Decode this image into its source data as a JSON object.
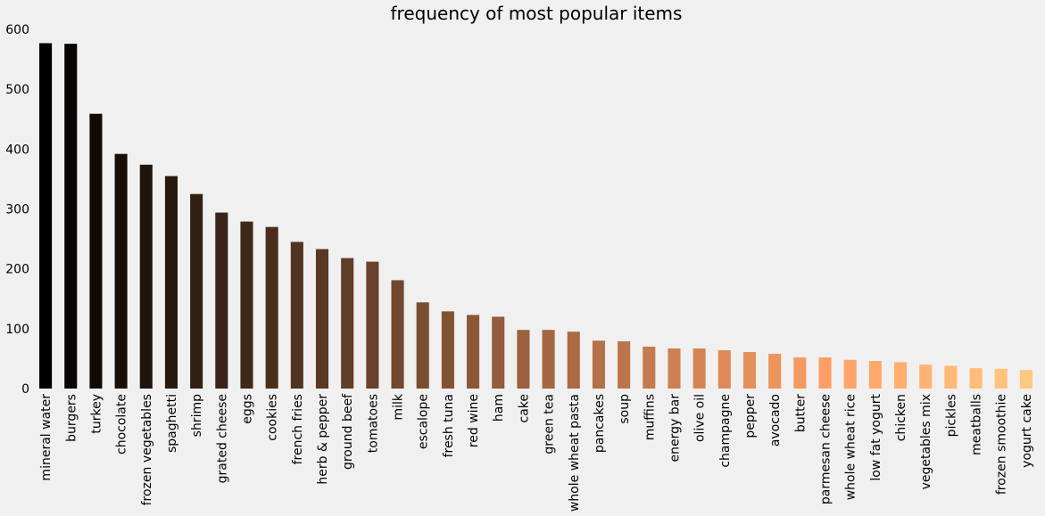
{
  "chart_data": {
    "type": "bar",
    "title": "frequency of most popular items",
    "xlabel": "",
    "ylabel": "",
    "ylim": [
      0,
      600
    ],
    "yticks": [
      0,
      100,
      200,
      300,
      400,
      500,
      600
    ],
    "grid": false,
    "colormap": "copper",
    "background": "#f0f0f0",
    "categories": [
      "mineral water",
      "burgers",
      "turkey",
      "chocolate",
      "frozen vegetables",
      "spaghetti",
      "shrimp",
      "grated cheese",
      "eggs",
      "cookies",
      "french fries",
      "herb & pepper",
      "ground beef",
      "tomatoes",
      "milk",
      "escalope",
      "fresh tuna",
      "red wine",
      "ham",
      "cake",
      "green tea",
      "whole wheat pasta",
      "pancakes",
      "soup",
      "muffins",
      "energy bar",
      "olive oil",
      "champagne",
      "pepper",
      "avocado",
      "butter",
      "parmesan cheese",
      "whole wheat rice",
      "low fat yogurt",
      "chicken",
      "vegetables mix",
      "pickles",
      "meatballs",
      "frozen smoothie",
      "yogurt cake"
    ],
    "values": [
      577,
      576,
      459,
      392,
      374,
      355,
      325,
      294,
      279,
      270,
      245,
      233,
      218,
      212,
      181,
      144,
      129,
      123,
      120,
      98,
      98,
      95,
      80,
      79,
      70,
      67,
      67,
      64,
      61,
      58,
      52,
      52,
      48,
      46,
      44,
      40,
      38,
      34,
      33,
      31
    ]
  }
}
